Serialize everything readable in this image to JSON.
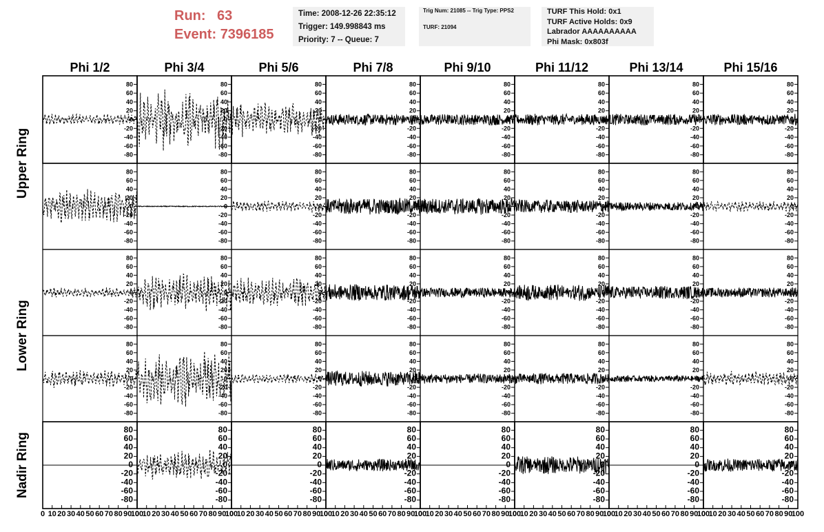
{
  "header": {
    "run_label": "Run:",
    "run_value": "63",
    "event_label": "Event:",
    "event_value": "7396185",
    "info_box_1": [
      "Time: 2008-12-26 22:35:12",
      "Trigger: 149.998843 ms",
      "Priority: 7 -- Queue: 7"
    ],
    "info_box_2": [
      "Trig Num: 21085 -- Trig Type: PPS2",
      "",
      "TURF: 21094"
    ],
    "info_box_3": [
      "TURF This Hold: 0x1",
      "TURF Active Holds: 0x9",
      "Labrador AAAAAAAAAA",
      "Phi Mask: 0x803f"
    ]
  },
  "chart_data": {
    "type": "line",
    "columns": [
      "Phi 1/2",
      "Phi 3/4",
      "Phi 5/6",
      "Phi 7/8",
      "Phi 9/10",
      "Phi 11/12",
      "Phi 13/14",
      "Phi 15/16"
    ],
    "row_labels": [
      {
        "label": "Upper Ring",
        "rows": [
          0,
          1
        ]
      },
      {
        "label": "Lower Ring",
        "rows": [
          2,
          3
        ]
      },
      {
        "label": "Nadir Ring",
        "rows": [
          4
        ]
      }
    ],
    "ylim": [
      -90,
      90
    ],
    "yticks": [
      -80,
      -60,
      -40,
      -20,
      0,
      20,
      40,
      60,
      80
    ],
    "ytick_labels": [
      "-80",
      "-60",
      "-40",
      "-20",
      "0",
      "20",
      "40",
      "60",
      "80"
    ],
    "xlim": [
      0,
      100
    ],
    "xticks": [
      0,
      10,
      20,
      30,
      40,
      50,
      60,
      70,
      80,
      90,
      100
    ],
    "xtick_labels": [
      "0",
      "10",
      "20",
      "30",
      "40",
      "50",
      "60",
      "70",
      "80",
      "90",
      "100"
    ],
    "samples_per_trace": 260,
    "panels": [
      [
        {
          "style": "dashed",
          "amp": 8,
          "burst": 1.5
        },
        {
          "style": "dashed",
          "amp": 28,
          "burst": 2.2
        },
        {
          "style": "dashed",
          "amp": 20,
          "burst": 1.8
        },
        {
          "style": "solid",
          "amp": 10,
          "burst": 1.3
        },
        {
          "style": "solid",
          "amp": 10,
          "burst": 1.3
        },
        {
          "style": "solid",
          "amp": 10,
          "burst": 1.3
        },
        {
          "style": "solid",
          "amp": 10,
          "burst": 1.3
        },
        {
          "style": "solid",
          "amp": 10,
          "burst": 1.3
        }
      ],
      [
        {
          "style": "dashed",
          "amp": 22,
          "burst": 1.6
        },
        {
          "style": "solid",
          "amp": 1,
          "burst": 1.0
        },
        {
          "style": "dashed",
          "amp": 8,
          "burst": 1.4
        },
        {
          "style": "solid",
          "amp": 15,
          "burst": 1.3
        },
        {
          "style": "solid",
          "amp": 15,
          "burst": 1.3
        },
        {
          "style": "solid",
          "amp": 12,
          "burst": 1.3
        },
        {
          "style": "solid",
          "amp": 8,
          "burst": 1.3
        },
        {
          "style": "dashed",
          "amp": 8,
          "burst": 1.4
        }
      ],
      [
        {
          "style": "dashed",
          "amp": 7,
          "burst": 1.5
        },
        {
          "style": "dashed",
          "amp": 22,
          "burst": 1.8
        },
        {
          "style": "dashed",
          "amp": 18,
          "burst": 1.8
        },
        {
          "style": "solid",
          "amp": 15,
          "burst": 1.3
        },
        {
          "style": "solid",
          "amp": 9,
          "burst": 1.3
        },
        {
          "style": "solid",
          "amp": 11,
          "burst": 1.8
        },
        {
          "style": "solid",
          "amp": 12,
          "burst": 1.3
        },
        {
          "style": "solid",
          "amp": 9,
          "burst": 1.3
        }
      ],
      [
        {
          "style": "dashed",
          "amp": 12,
          "burst": 1.5
        },
        {
          "style": "dashed",
          "amp": 30,
          "burst": 2.0
        },
        {
          "style": "dashed",
          "amp": 7,
          "burst": 1.5
        },
        {
          "style": "solid",
          "amp": 14,
          "burst": 1.3
        },
        {
          "style": "solid",
          "amp": 9,
          "burst": 1.3
        },
        {
          "style": "solid",
          "amp": 10,
          "burst": 1.3
        },
        {
          "style": "solid",
          "amp": 6,
          "burst": 1.3
        },
        {
          "style": "dashed",
          "amp": 10,
          "burst": 1.5
        }
      ],
      [
        {
          "style": "flat",
          "amp": 0,
          "burst": 1.0
        },
        {
          "style": "dashed",
          "amp": 18,
          "burst": 1.8
        },
        {
          "style": "flat",
          "amp": 0,
          "burst": 1.0
        },
        {
          "style": "solid",
          "amp": 11,
          "burst": 1.3
        },
        {
          "style": "flat",
          "amp": 0,
          "burst": 1.0
        },
        {
          "style": "solid",
          "amp": 14,
          "burst": 1.5
        },
        {
          "style": "flat",
          "amp": 0,
          "burst": 1.0
        },
        {
          "style": "solid",
          "amp": 12,
          "burst": 1.3
        }
      ]
    ]
  }
}
